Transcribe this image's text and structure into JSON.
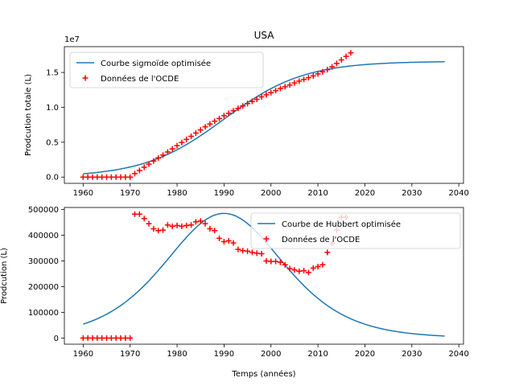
{
  "figure": {
    "title": "USA",
    "xlabel": "Temps (années)"
  },
  "chart_data": [
    {
      "type": "line+scatter",
      "ylabel": "Prodcution totale (L)",
      "y_offset_text": "1e7",
      "xlim": [
        1956,
        2041
      ],
      "ylim": [
        -900000,
        18700000
      ],
      "x_ticks": [
        1960,
        1970,
        1980,
        1990,
        2000,
        2010,
        2020,
        2030,
        2040
      ],
      "y_ticks": [
        0,
        5000000,
        10000000,
        15000000
      ],
      "y_tick_labels": [
        "0.0",
        "0.5",
        "1.0",
        "1.5"
      ],
      "legend_position": "top-left",
      "curve": {
        "name": "Courbe sigmoïde optimisée",
        "color": "#1f77b4",
        "kind": "logistic",
        "K": 16600000,
        "t0": 1990,
        "k": 0.1175,
        "x_range": [
          1960,
          2037
        ]
      },
      "scatter": {
        "name": "Données de l'OCDE",
        "color": "#ff0000",
        "marker": "plus",
        "x": [
          1960,
          1961,
          1962,
          1963,
          1964,
          1965,
          1966,
          1967,
          1968,
          1969,
          1970,
          1971,
          1972,
          1973,
          1974,
          1975,
          1976,
          1977,
          1978,
          1979,
          1980,
          1981,
          1982,
          1983,
          1984,
          1985,
          1986,
          1987,
          1988,
          1989,
          1990,
          1991,
          1992,
          1993,
          1994,
          1995,
          1996,
          1997,
          1998,
          1999,
          2000,
          2001,
          2002,
          2003,
          2004,
          2005,
          2006,
          2007,
          2008,
          2009,
          2010,
          2011,
          2012,
          2013,
          2014,
          2015,
          2016,
          2017
        ],
        "y": [
          0,
          0,
          0,
          0,
          0,
          0,
          0,
          0,
          0,
          0,
          0,
          500000,
          950000,
          1400000,
          1850000,
          2300000,
          2750000,
          3150000,
          3600000,
          4050000,
          4500000,
          4950000,
          5400000,
          5850000,
          6300000,
          6750000,
          7200000,
          7600000,
          8000000,
          8400000,
          8800000,
          9150000,
          9500000,
          9850000,
          10200000,
          10550000,
          10850000,
          11150000,
          11500000,
          11800000,
          12100000,
          12400000,
          12700000,
          12950000,
          13200000,
          13500000,
          13750000,
          14000000,
          14250000,
          14500000,
          14800000,
          15100000,
          15400000,
          15800000,
          16300000,
          16800000,
          17300000,
          17800000
        ]
      }
    },
    {
      "type": "line+scatter",
      "ylabel": "Prodcution (L)",
      "xlim": [
        1956,
        2041
      ],
      "ylim": [
        -24000,
        508000
      ],
      "x_ticks": [
        1960,
        1970,
        1980,
        1990,
        2000,
        2010,
        2020,
        2030,
        2040
      ],
      "y_ticks": [
        0,
        100000,
        200000,
        300000,
        400000,
        500000
      ],
      "y_tick_labels": [
        "0",
        "100000",
        "200000",
        "300000",
        "400000",
        "500000"
      ],
      "legend_position": "top-right",
      "curve": {
        "name": "Courbe de Hubbert optimisée",
        "color": "#1f77b4",
        "kind": "hubbert",
        "peak": 485000,
        "t0": 1990,
        "k": 0.1175,
        "x_range": [
          1960,
          2037
        ]
      },
      "scatter": {
        "name": "Données de l'OCDE",
        "color": "#ff0000",
        "marker": "plus",
        "x": [
          1960,
          1961,
          1962,
          1963,
          1964,
          1965,
          1966,
          1967,
          1968,
          1969,
          1970,
          1971,
          1972,
          1973,
          1974,
          1975,
          1976,
          1977,
          1978,
          1979,
          1980,
          1981,
          1982,
          1983,
          1984,
          1985,
          1986,
          1987,
          1988,
          1989,
          1990,
          1991,
          1992,
          1993,
          1994,
          1995,
          1996,
          1997,
          1998,
          1999,
          2000,
          2001,
          2002,
          2003,
          2004,
          2005,
          2006,
          2007,
          2008,
          2009,
          2010,
          2011,
          2012,
          2013,
          2014,
          2015,
          2016
        ],
        "y": [
          0,
          0,
          0,
          0,
          0,
          0,
          0,
          0,
          0,
          0,
          0,
          482000,
          482000,
          465000,
          445000,
          425000,
          418000,
          420000,
          440000,
          435000,
          438000,
          435000,
          438000,
          440000,
          452000,
          455000,
          445000,
          425000,
          418000,
          388000,
          375000,
          378000,
          370000,
          345000,
          340000,
          338000,
          333000,
          330000,
          328000,
          300000,
          298000,
          298000,
          295000,
          285000,
          270000,
          265000,
          260000,
          262000,
          255000,
          272000,
          278000,
          285000,
          333000,
          368000,
          420000,
          470000,
          470000
        ]
      }
    }
  ]
}
